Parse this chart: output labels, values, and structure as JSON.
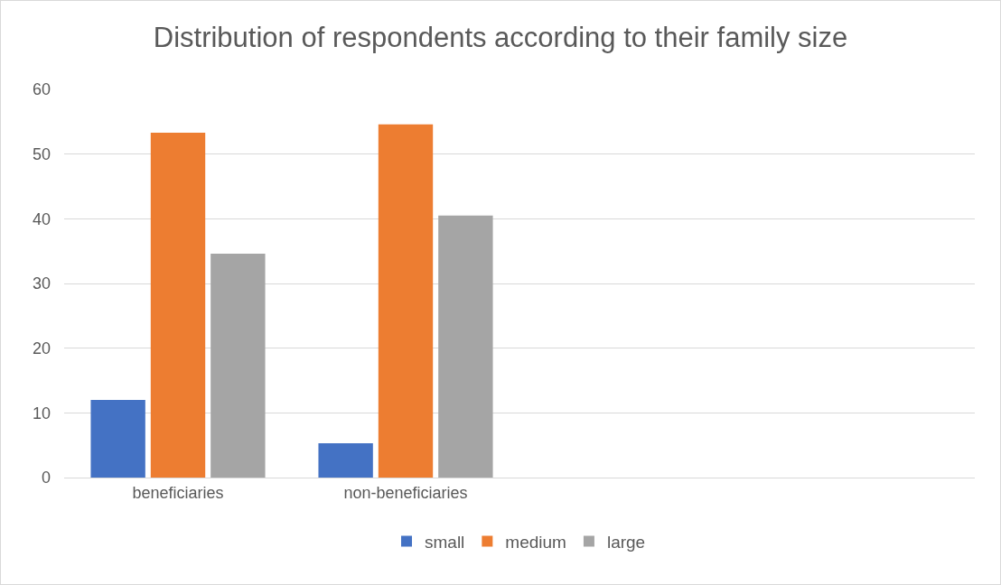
{
  "chart_data": {
    "type": "bar",
    "title": "Distribution of respondents according to their family size",
    "categories": [
      "beneficiaries",
      "non-beneficiaries",
      null,
      null
    ],
    "series": [
      {
        "name": "small",
        "color": "#4472c4",
        "values": [
          12,
          5.3,
          null,
          null
        ]
      },
      {
        "name": "medium",
        "color": "#ed7d31",
        "values": [
          53.3,
          54.6,
          null,
          null
        ]
      },
      {
        "name": "large",
        "color": "#a5a5a5",
        "values": [
          34.6,
          40.5,
          null,
          null
        ]
      }
    ],
    "ylim": [
      0,
      60
    ],
    "yticks": [
      0,
      10,
      20,
      30,
      40,
      50,
      60
    ],
    "grid": "y",
    "legend": "bottom"
  }
}
